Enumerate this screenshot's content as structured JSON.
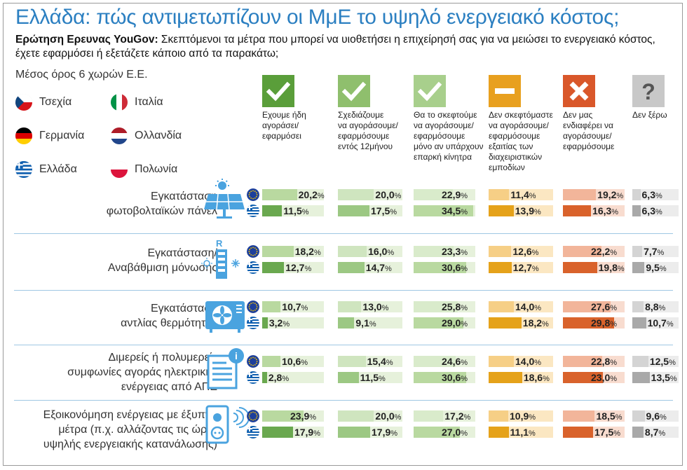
{
  "title": "Ελλάδα: πώς αντιμετωπίζουν οι ΜμΕ το υψηλό ενεργειακό κόστος;",
  "question": {
    "bold": "Ερώτηση Ερευνας YouGov:",
    "text": " Σκεπτόμενοι τα μέτρα που μπορεί να υιοθετήσει η επιχείρησή σας για να μειώσει το ενεργειακό κόστος, έχετε εφαρμόσει ή εξετάζετε κάποιο από τα παρακάτω;"
  },
  "legend": {
    "avg_label": "Μέσος όρος 6 χωρών Ε.Ε.",
    "countries": [
      "Τσεχία",
      "Ιταλία",
      "Γερμανία",
      "Ολλανδία",
      "Ελλάδα",
      "Πολωνία"
    ]
  },
  "chart_data": {
    "type": "bar",
    "unit": "%",
    "columns": [
      {
        "label": "Εχουμε ήδη αγοράσει/ εφαρμόσει",
        "icon": "check-icon",
        "color_dark": "#6aa84f",
        "color_light": "#b9d9a0",
        "bg": "#e6f1db"
      },
      {
        "label": "Σχεδιάζουμε να αγοράσουμε/ εφαρμόσουμε εντός 12μήνου",
        "icon": "check-icon",
        "color_dark": "#9cc883",
        "color_light": "#cfe5bf",
        "bg": "#e6f1db"
      },
      {
        "label": "Θα το σκεφτούμε να αγοράσουμε/ εφαρμόσουμε μόνο αν υπάρχουν επαρκή κίνητρα",
        "icon": "check-icon",
        "color_dark": "#b9d9a0",
        "color_light": "#d9ebcb",
        "bg": "#e6f1db"
      },
      {
        "label": "Δεν σκεφτόμαστε να αγοράσουμε/ εφαρμόσουμε εξαιτίας των διαχειριστικών εμποδίων",
        "icon": "minus-icon",
        "color_dark": "#e5a21a",
        "color_light": "#f6cf86",
        "bg": "#fbe7c2"
      },
      {
        "label": "Δεν μας ενδιαφέρει να αγοράσουμε/ εφαρμόσουμε",
        "icon": "cross-icon",
        "color_dark": "#d9622b",
        "color_light": "#f2b59a",
        "bg": "#f8dccf"
      },
      {
        "label": "Δεν ξέρω",
        "icon": "question-icon",
        "color_dark": "#a9a9a9",
        "color_light": "#d4d4d4",
        "bg": "#ececec"
      }
    ],
    "series": [
      "EU",
      "GR"
    ],
    "rows": [
      {
        "label": "Εγκατάσταση φωτοβολταϊκών πάνελ",
        "icon": "solar-panel-icon",
        "eu": [
          "20,2",
          "20,0",
          "22,9",
          "11,4",
          "19,2",
          "6,3"
        ],
        "gr": [
          "11,5",
          "17,5",
          "34,5",
          "13,9",
          "16,3",
          "6,3"
        ]
      },
      {
        "label": "Εγκατάσταση/ Αναβάθμιση μόνωσης",
        "icon": "insulation-icon",
        "eu": [
          "18,2",
          "16,0",
          "23,3",
          "12,6",
          "22,2",
          "7,7"
        ],
        "gr": [
          "12,7",
          "14,7",
          "30,6",
          "12,7",
          "19,8",
          "9,5"
        ]
      },
      {
        "label": "Εγκατάσταση αντλίας θερμότητας",
        "icon": "heat-pump-icon",
        "eu": [
          "10,7",
          "13,0",
          "25,8",
          "14,0",
          "27,6",
          "8,8"
        ],
        "gr": [
          "3,2",
          "9,1",
          "29,0",
          "18,2",
          "29,8",
          "10,7"
        ]
      },
      {
        "label": "Διμερείς ή πολυμερείς συμφωνίες αγοράς ηλεκτρικής ενέργειας από ΑΠΕ",
        "icon": "contract-icon",
        "eu": [
          "10,6",
          "15,4",
          "24,6",
          "14,0",
          "22,8",
          "12,5"
        ],
        "gr": [
          "2,8",
          "11,5",
          "30,6",
          "18,6",
          "23,0",
          "13,5"
        ]
      },
      {
        "label": "Εξοικονόμηση ενέργειας με έξυπνα μέτρα (π.χ. αλλάζοντας τις ώρες υψηλής ενεργειακής κατανάλωσης)",
        "icon": "smart-plug-icon",
        "eu": [
          "23,9",
          "20,0",
          "17,2",
          "10,9",
          "18,5",
          "9,6"
        ],
        "gr": [
          "17,9",
          "17,9",
          "27,0",
          "11,1",
          "17,5",
          "8,7"
        ]
      }
    ],
    "row_label_lines": [
      [
        "Εγκατάσταση",
        "φωτοβολταϊκών πάνελ"
      ],
      [
        "Εγκατάσταση/",
        "Αναβάθμιση μόνωσης"
      ],
      [
        "Εγκατάσταση",
        "αντλίας θερμότητας"
      ],
      [
        "Διμερείς ή πολυμερείς",
        "συμφωνίες αγοράς ηλεκτρικής",
        "ενέργειας από ΑΠΕ"
      ],
      [
        "Εξοικονόμηση ενέργειας με έξυπνα",
        "μέτρα (π.χ. αλλάζοντας τις ώρες",
        "υψηλής ενεργειακής κατανάλωσης)"
      ]
    ],
    "col_label_lines": [
      [
        "Εχουμε ήδη",
        "αγοράσει/",
        "εφαρμόσει"
      ],
      [
        "Σχεδιάζουμε",
        "να αγοράσουμε/",
        "εφαρμόσουμε",
        "εντός 12μήνου"
      ],
      [
        "Θα το σκεφτούμε",
        "να αγοράσουμε/",
        "εφαρμόσουμε",
        "μόνο αν υπάρχουν",
        "επαρκή κίνητρα"
      ],
      [
        "Δεν σκεφτόμαστε",
        "να αγοράσουμε/",
        "εφαρμόσουμε",
        "εξαιτίας των",
        "διαχειριστικών",
        "εμποδίων"
      ],
      [
        "Δεν μας",
        "ενδιαφέρει να",
        "αγοράσουμε/",
        "εφαρμόσουμε"
      ],
      [
        "Δεν ξέρω"
      ]
    ]
  }
}
